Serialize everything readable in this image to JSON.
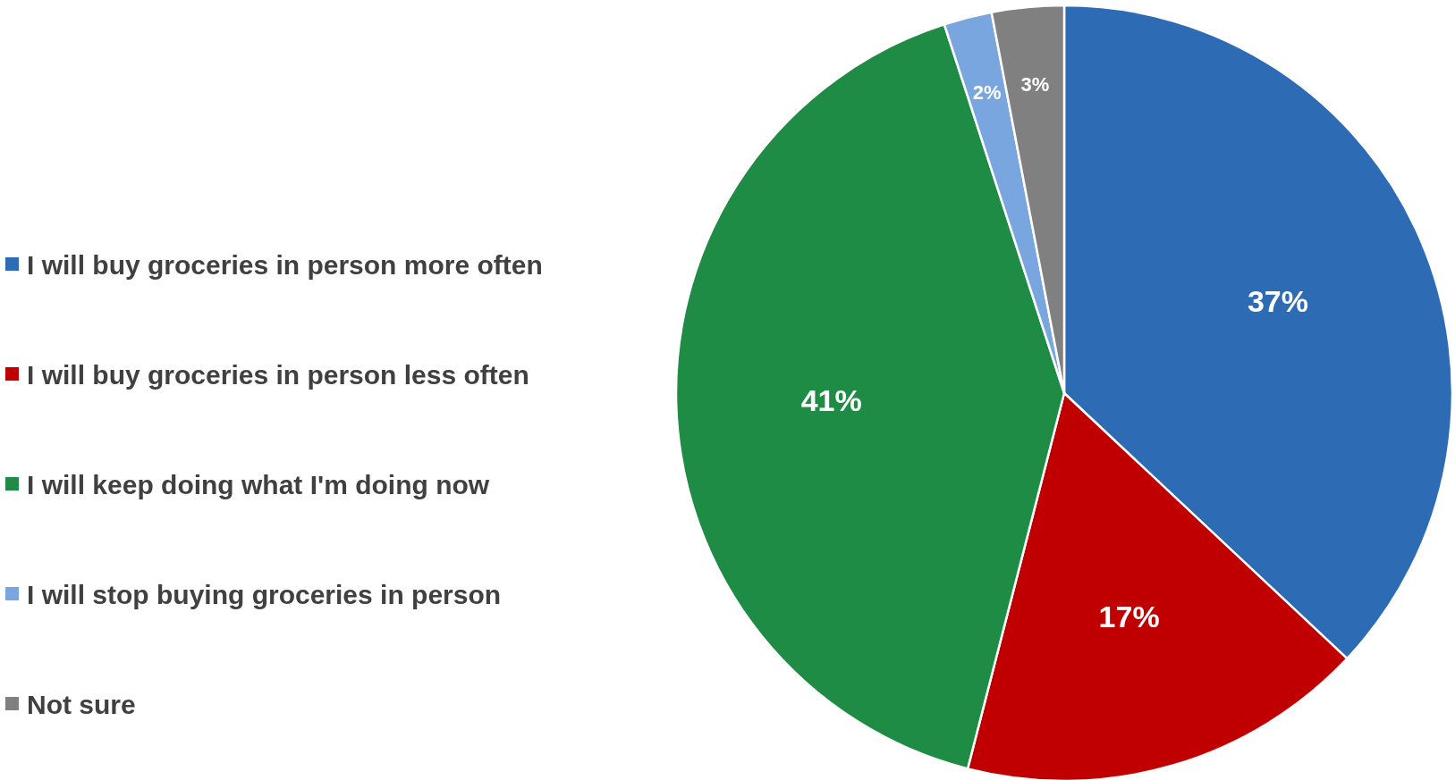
{
  "chart_data": {
    "type": "pie",
    "categories": [
      "I will buy groceries in person more often",
      "I will buy groceries in person less often",
      "I will keep doing what I'm doing now",
      "I will stop buying groceries in person",
      "Not sure"
    ],
    "values": [
      37,
      17,
      41,
      2,
      3
    ],
    "colors": [
      "#2e6bb5",
      "#c00000",
      "#1e8c45",
      "#7aa6df",
      "#808080"
    ],
    "value_labels": [
      "37%",
      "17%",
      "41%",
      "2%",
      "3%"
    ],
    "legend": "left"
  }
}
